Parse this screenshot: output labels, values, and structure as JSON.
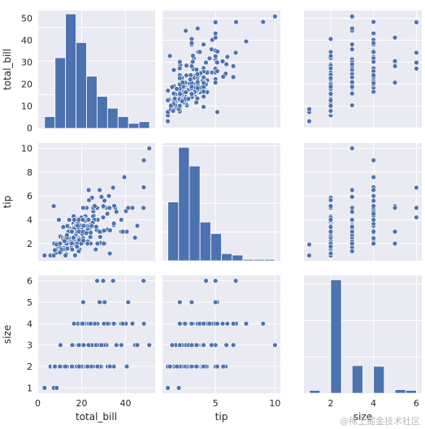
{
  "watermark": "@稀土掘金技术社区",
  "chart_data": {
    "type": "pairplot",
    "variables": [
      "total_bill",
      "tip",
      "size"
    ],
    "colors": {
      "panel_bg": "#eaeaf2",
      "grid": "#ffffff",
      "marker": "#4c72b0",
      "marker_edge": "#ffffff"
    },
    "grid": true,
    "axes": {
      "total_bill": {
        "lim": [
          -0.2,
          53.5
        ],
        "ticks": [
          0,
          20,
          40
        ],
        "ticks_y": [
          0,
          10,
          20,
          30,
          40,
          50
        ]
      },
      "tip": {
        "lim": [
          0.55,
          10.45
        ],
        "ticks": [
          5,
          10
        ],
        "ticks_y": [
          2,
          4,
          6,
          8,
          10
        ]
      },
      "size": {
        "lim": [
          0.75,
          6.25
        ],
        "ticks": [
          2,
          4,
          6
        ],
        "ticks_y": [
          1,
          2,
          3,
          4,
          5,
          6
        ]
      }
    },
    "histograms": {
      "total_bill": {
        "edges": [
          3.07,
          7.85,
          12.64,
          17.42,
          22.2,
          26.99,
          31.77,
          36.56,
          41.34,
          46.12,
          50.91
        ],
        "counts": [
          7,
          42,
          68,
          51,
          31,
          19,
          12,
          7,
          3,
          4
        ],
        "ylim": [
          0,
          70
        ]
      },
      "tip": {
        "edges": [
          1.0,
          1.9,
          2.8,
          3.7,
          4.6,
          5.5,
          6.4,
          7.3,
          8.2,
          9.1,
          10.0
        ],
        "counts": [
          41,
          79,
          66,
          27,
          19,
          5,
          4,
          1,
          1,
          1
        ],
        "ylim": [
          0,
          82
        ]
      },
      "size": {
        "edges": [
          1.0,
          1.5,
          2.0,
          2.5,
          3.0,
          3.5,
          4.0,
          4.5,
          5.0,
          5.5,
          6.0
        ],
        "counts": [
          4,
          0,
          156,
          0,
          38,
          0,
          37,
          0,
          5,
          4
        ],
        "ylim": [
          0,
          162
        ]
      }
    },
    "points": {
      "total_bill": [
        16.99,
        10.34,
        21.01,
        23.68,
        24.59,
        25.29,
        8.77,
        26.88,
        15.04,
        14.78,
        10.27,
        35.26,
        15.42,
        18.43,
        14.83,
        21.58,
        10.33,
        16.29,
        16.97,
        20.65,
        17.92,
        20.29,
        15.77,
        39.42,
        19.82,
        17.81,
        13.37,
        12.69,
        21.7,
        19.65,
        9.55,
        18.35,
        15.06,
        20.69,
        17.78,
        24.06,
        16.31,
        16.93,
        18.69,
        31.27,
        16.04,
        17.46,
        13.94,
        9.68,
        30.4,
        18.29,
        22.23,
        32.4,
        28.55,
        18.04,
        12.54,
        10.29,
        34.81,
        9.94,
        25.56,
        19.49,
        38.01,
        26.41,
        11.24,
        48.27,
        20.29,
        13.81,
        11.02,
        18.29,
        17.59,
        20.08,
        16.45,
        3.07,
        20.23,
        15.01,
        12.02,
        17.07,
        26.86,
        25.28,
        14.73,
        10.51,
        17.92,
        27.2,
        22.76,
        17.29,
        19.44,
        16.66,
        10.07,
        32.68,
        15.98,
        34.83,
        13.03,
        18.28,
        24.71,
        21.16,
        28.97,
        22.49,
        5.75,
        16.32,
        22.75,
        40.17,
        27.28,
        12.03,
        21.01,
        12.46,
        11.35,
        15.38,
        44.3,
        22.42,
        20.92,
        15.36,
        20.49,
        25.21,
        18.24,
        14.31,
        14.0,
        7.25,
        38.07,
        23.95,
        25.71,
        17.31,
        29.93,
        10.65,
        12.43,
        24.08,
        11.69,
        13.42,
        14.26,
        15.95,
        12.48,
        29.8,
        8.52,
        14.52,
        11.38,
        22.82,
        19.08,
        20.27,
        11.17,
        12.26,
        18.26,
        8.51,
        10.33,
        14.15,
        16.0,
        13.16,
        17.47,
        34.3,
        41.19,
        27.05,
        16.43,
        8.35,
        18.64,
        11.87,
        9.78,
        7.51,
        14.07,
        13.13,
        17.26,
        24.55,
        19.77,
        29.85,
        48.17,
        25.0,
        13.39,
        16.49,
        21.5,
        12.66,
        16.21,
        13.81,
        17.51,
        24.52,
        20.76,
        31.71,
        10.59,
        10.63,
        50.81,
        15.81,
        7.25,
        31.85,
        16.82,
        32.9,
        17.89,
        14.48,
        9.6,
        34.63,
        34.65,
        23.33,
        45.35,
        23.17,
        40.55,
        20.69,
        20.9,
        30.46,
        18.15,
        23.1,
        15.69,
        19.81,
        28.44,
        15.48,
        16.58,
        7.56,
        10.34,
        43.11,
        13.0,
        13.51,
        18.71,
        12.74,
        13.0,
        16.4,
        20.53,
        16.47,
        26.59,
        38.73,
        24.27,
        12.76,
        30.06,
        25.89,
        48.33,
        13.27,
        28.17,
        12.9,
        28.15,
        11.59,
        7.74,
        30.14,
        12.16,
        13.42,
        8.58,
        15.98,
        13.42,
        16.27,
        10.09,
        20.45,
        13.28,
        22.12,
        24.01,
        15.69,
        11.61,
        10.77,
        15.53,
        10.07,
        12.6,
        32.83,
        35.83,
        29.03,
        27.18,
        22.67,
        17.82,
        18.78
      ],
      "tip": [
        1.01,
        1.66,
        3.5,
        3.31,
        3.61,
        4.71,
        2.0,
        3.12,
        1.96,
        3.23,
        1.71,
        5.0,
        1.57,
        3.0,
        3.02,
        3.92,
        1.67,
        3.71,
        3.5,
        3.35,
        4.08,
        2.75,
        2.23,
        7.58,
        3.18,
        2.34,
        2.0,
        2.0,
        4.3,
        3.0,
        1.45,
        2.5,
        3.0,
        2.45,
        3.27,
        3.6,
        2.0,
        3.07,
        2.31,
        5.0,
        2.24,
        2.54,
        3.06,
        1.32,
        5.6,
        3.0,
        5.0,
        6.0,
        2.05,
        3.0,
        2.5,
        2.6,
        5.2,
        1.56,
        4.34,
        3.51,
        3.0,
        1.5,
        1.76,
        6.73,
        3.21,
        2.0,
        1.98,
        3.76,
        2.64,
        3.15,
        2.47,
        1.0,
        2.01,
        2.09,
        1.97,
        3.0,
        3.14,
        5.0,
        2.2,
        1.25,
        3.08,
        4.0,
        3.0,
        2.71,
        3.0,
        3.4,
        1.83,
        5.0,
        2.03,
        5.17,
        2.0,
        4.0,
        5.85,
        3.0,
        3.0,
        3.5,
        1.0,
        4.3,
        3.25,
        4.73,
        4.0,
        1.5,
        3.0,
        1.5,
        2.5,
        3.0,
        2.5,
        3.48,
        4.08,
        1.64,
        4.06,
        4.29,
        3.76,
        4.0,
        3.0,
        1.0,
        4.0,
        2.55,
        4.0,
        3.5,
        5.07,
        1.5,
        1.8,
        2.92,
        2.31,
        1.68,
        2.5,
        2.0,
        2.52,
        4.2,
        1.48,
        2.0,
        2.0,
        2.18,
        1.5,
        2.83,
        1.5,
        2.0,
        3.25,
        1.25,
        2.0,
        2.0,
        2.0,
        2.75,
        3.5,
        6.7,
        5.0,
        5.0,
        2.3,
        1.5,
        1.36,
        1.63,
        1.73,
        2.0,
        2.5,
        2.0,
        2.74,
        2.0,
        2.0,
        5.14,
        5.0,
        3.75,
        2.61,
        2.0,
        3.5,
        2.5,
        2.0,
        2.0,
        3.0,
        3.48,
        2.24,
        4.5,
        1.61,
        2.0,
        10.0,
        3.16,
        5.15,
        3.18,
        4.0,
        3.11,
        2.0,
        2.0,
        4.0,
        3.55,
        3.68,
        5.65,
        3.5,
        6.5,
        3.0,
        5.0,
        3.5,
        2.0,
        3.5,
        4.0,
        1.5,
        4.19,
        2.56,
        2.02,
        4.0,
        1.44,
        2.0,
        5.0,
        2.0,
        2.0,
        4.0,
        2.01,
        2.0,
        2.5,
        4.0,
        3.23,
        3.41,
        3.0,
        2.03,
        2.23,
        2.0,
        5.16,
        9.0,
        2.5,
        6.5,
        1.1,
        3.0,
        1.5,
        1.44,
        3.09,
        2.2,
        3.48,
        1.92,
        3.0,
        1.58,
        2.5,
        2.0,
        3.0,
        2.72,
        2.88,
        2.0,
        3.0,
        3.39,
        1.47,
        3.0,
        1.25,
        1.0,
        1.17,
        4.67,
        5.92,
        2.0,
        2.0,
        1.75,
        3.0
      ],
      "size": [
        2,
        3,
        3,
        2,
        4,
        4,
        2,
        4,
        2,
        2,
        2,
        4,
        2,
        4,
        2,
        2,
        3,
        3,
        3,
        3,
        2,
        2,
        2,
        4,
        2,
        4,
        2,
        2,
        2,
        2,
        2,
        4,
        2,
        4,
        2,
        3,
        3,
        3,
        3,
        3,
        3,
        2,
        2,
        2,
        4,
        2,
        2,
        4,
        3,
        2,
        2,
        2,
        4,
        2,
        4,
        2,
        4,
        2,
        2,
        4,
        2,
        2,
        2,
        4,
        3,
        3,
        2,
        1,
        2,
        2,
        2,
        3,
        2,
        2,
        2,
        2,
        2,
        4,
        2,
        2,
        2,
        2,
        2,
        2,
        2,
        4,
        2,
        2,
        2,
        2,
        2,
        2,
        2,
        2,
        2,
        4,
        2,
        2,
        2,
        2,
        2,
        2,
        3,
        2,
        2,
        2,
        2,
        2,
        2,
        2,
        2,
        1,
        3,
        2,
        3,
        2,
        4,
        2,
        2,
        4,
        2,
        2,
        2,
        2,
        2,
        6,
        2,
        2,
        2,
        3,
        2,
        2,
        2,
        2,
        2,
        2,
        2,
        2,
        2,
        2,
        2,
        6,
        5,
        6,
        2,
        2,
        3,
        2,
        2,
        2,
        2,
        2,
        3,
        4,
        4,
        5,
        6,
        4,
        2,
        4,
        4,
        2,
        3,
        2,
        2,
        3,
        2,
        4,
        2,
        2,
        3,
        2,
        2,
        2,
        2,
        2,
        2,
        2,
        2,
        2,
        4,
        2,
        3,
        4,
        2,
        5,
        3,
        5,
        3,
        3,
        2,
        2,
        2,
        2,
        2,
        2,
        2,
        4,
        2,
        2,
        3,
        2,
        2,
        2,
        4,
        3,
        3,
        4,
        2,
        2,
        3,
        4,
        4,
        2,
        3,
        2,
        5,
        2,
        2,
        4,
        2,
        2,
        1,
        3,
        2,
        2,
        2,
        4,
        2,
        2,
        4,
        3,
        2,
        2,
        2,
        2,
        2,
        2,
        3,
        3,
        2,
        2,
        2,
        2
      ]
    }
  }
}
